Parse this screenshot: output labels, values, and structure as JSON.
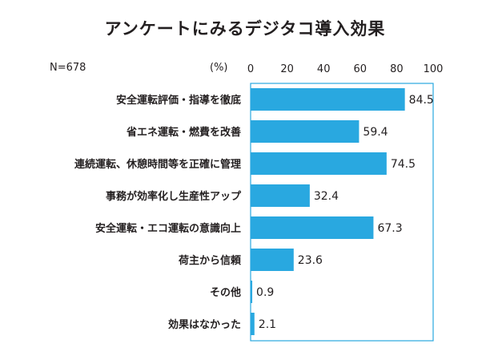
{
  "title": "アンケートにみるデジタコ導入効果",
  "sample_label": "N=678",
  "chart_data": {
    "type": "bar",
    "orientation": "horizontal",
    "unit_label": "(%)",
    "categories": [
      "安全運転評価・指導を徹底",
      "省エネ運転・燃費を改善",
      "連続運転、休憩時間等を正確に管理",
      "事務が効率化し生産性アップ",
      "安全運転・エコ運転の意識向上",
      "荷主から信頼",
      "その他",
      "効果はなかった"
    ],
    "values": [
      84.5,
      59.4,
      74.5,
      32.4,
      67.3,
      23.6,
      0.9,
      2.1
    ],
    "value_labels": [
      "84.5",
      "59.4",
      "74.5",
      "32.4",
      "67.3",
      "23.6",
      "0.9",
      "2.1"
    ],
    "xlim": [
      0,
      100
    ],
    "ticks": [
      "0",
      "20",
      "40",
      "60",
      "80",
      "100"
    ],
    "bar_color": "#29a8e0",
    "frame_color": "#29a8e0",
    "grid": false
  }
}
